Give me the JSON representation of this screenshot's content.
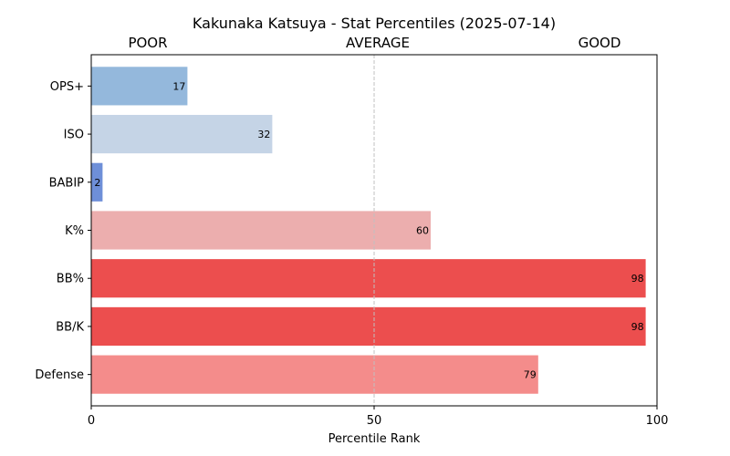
{
  "chart_data": {
    "type": "bar",
    "orientation": "horizontal",
    "title": "Kakunaka Katsuya - Stat Percentiles (2025-07-14)",
    "xlabel": "Percentile Rank",
    "ylabel": "",
    "xlim": [
      0,
      100
    ],
    "x_ticks": [
      "0",
      "50",
      "100"
    ],
    "zone_labels": [
      "POOR",
      "AVERAGE",
      "GOOD"
    ],
    "reference_line": 50,
    "grid": false,
    "categories": [
      "OPS+",
      "ISO",
      "BABIP",
      "K%",
      "BB%",
      "BB/K",
      "Defense"
    ],
    "values": [
      17,
      32,
      2,
      60,
      98,
      98,
      79
    ],
    "value_labels": [
      "17",
      "32",
      "2",
      "60",
      "98",
      "98",
      "79"
    ],
    "bar_colors": [
      "#94b8dc",
      "#c5d4e6",
      "#6e8fd8",
      "#ecaeae",
      "#ec4e4e",
      "#ec4e4e",
      "#f48c8b"
    ]
  }
}
